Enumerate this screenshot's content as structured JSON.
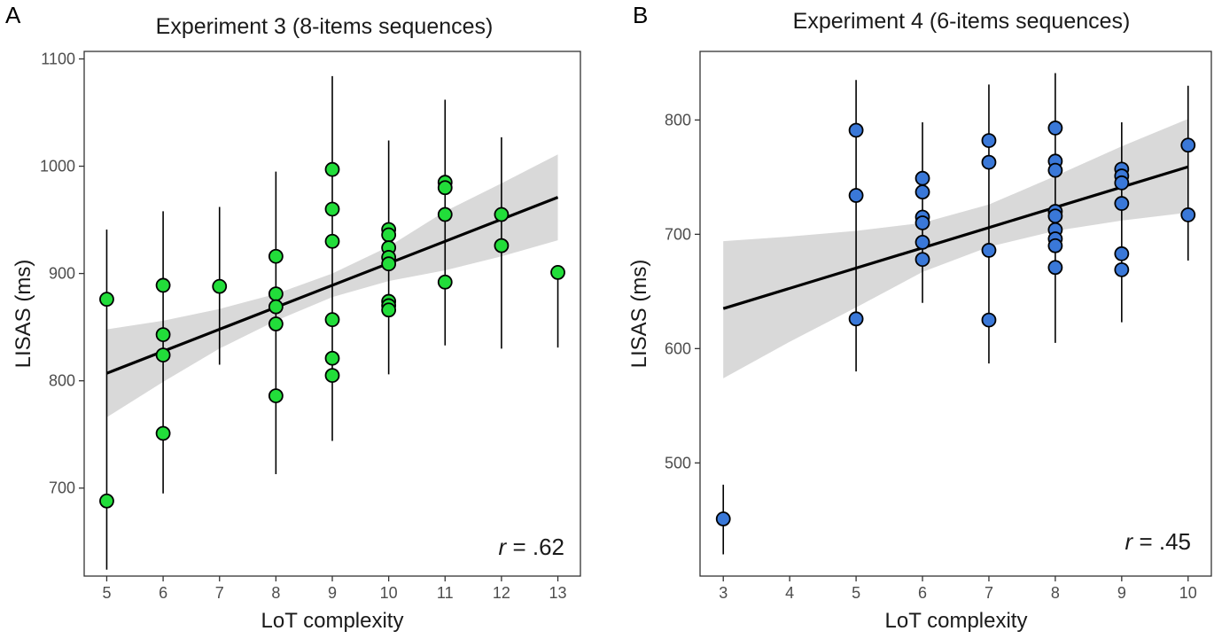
{
  "chart_data": [
    {
      "panel_letter": "A",
      "type": "scatter",
      "title": "Experiment 3 (8-items sequences)",
      "xlabel": "LoT complexity",
      "ylabel": "LISAS (ms)",
      "xlim": [
        4.6,
        13.4
      ],
      "ylim": [
        618,
        1107
      ],
      "xticks": [
        5,
        6,
        7,
        8,
        9,
        10,
        11,
        12,
        13
      ],
      "yticks": [
        700,
        800,
        900,
        1000,
        1100
      ],
      "grid": false,
      "point_color": "#22dd3a",
      "annotation": {
        "italic": "r",
        "rest": " = .62"
      },
      "regression": {
        "x0": 5,
        "y0": 807,
        "x1": 13,
        "y1": 971
      },
      "ci_band": [
        {
          "x": 5,
          "lo": 766,
          "hi": 848
        },
        {
          "x": 6,
          "lo": 799,
          "hi": 856
        },
        {
          "x": 7,
          "lo": 830,
          "hi": 867
        },
        {
          "x": 8,
          "lo": 856,
          "hi": 881
        },
        {
          "x": 9,
          "lo": 878,
          "hi": 900
        },
        {
          "x": 10,
          "lo": 893,
          "hi": 925
        },
        {
          "x": 11,
          "lo": 903,
          "hi": 958
        },
        {
          "x": 12,
          "lo": 916,
          "hi": 984
        },
        {
          "x": 13,
          "lo": 931,
          "hi": 1011
        }
      ],
      "error_bars": [
        {
          "x": 5,
          "lo": 624,
          "hi": 941
        },
        {
          "x": 6,
          "lo": 695,
          "hi": 958
        },
        {
          "x": 7,
          "lo": 815,
          "hi": 962
        },
        {
          "x": 8,
          "lo": 713,
          "hi": 995
        },
        {
          "x": 9,
          "lo": 744,
          "hi": 1084
        },
        {
          "x": 10,
          "lo": 806,
          "hi": 1024
        },
        {
          "x": 11,
          "lo": 833,
          "hi": 1062
        },
        {
          "x": 12,
          "lo": 830,
          "hi": 1027
        },
        {
          "x": 13,
          "lo": 831,
          "hi": 900
        }
      ],
      "points": [
        {
          "x": 5,
          "y": 876
        },
        {
          "x": 5,
          "y": 688
        },
        {
          "x": 6,
          "y": 889
        },
        {
          "x": 6,
          "y": 843
        },
        {
          "x": 6,
          "y": 824
        },
        {
          "x": 6,
          "y": 751
        },
        {
          "x": 7,
          "y": 888
        },
        {
          "x": 8,
          "y": 916
        },
        {
          "x": 8,
          "y": 881
        },
        {
          "x": 8,
          "y": 869
        },
        {
          "x": 8,
          "y": 853
        },
        {
          "x": 8,
          "y": 786
        },
        {
          "x": 9,
          "y": 997
        },
        {
          "x": 9,
          "y": 960
        },
        {
          "x": 9,
          "y": 930
        },
        {
          "x": 9,
          "y": 857
        },
        {
          "x": 9,
          "y": 821
        },
        {
          "x": 9,
          "y": 805
        },
        {
          "x": 10,
          "y": 941
        },
        {
          "x": 10,
          "y": 936
        },
        {
          "x": 10,
          "y": 924
        },
        {
          "x": 10,
          "y": 915
        },
        {
          "x": 10,
          "y": 909
        },
        {
          "x": 10,
          "y": 874
        },
        {
          "x": 10,
          "y": 870
        },
        {
          "x": 10,
          "y": 866
        },
        {
          "x": 11,
          "y": 985
        },
        {
          "x": 11,
          "y": 980
        },
        {
          "x": 11,
          "y": 955
        },
        {
          "x": 11,
          "y": 892
        },
        {
          "x": 12,
          "y": 955
        },
        {
          "x": 12,
          "y": 926
        },
        {
          "x": 13,
          "y": 901
        }
      ]
    },
    {
      "panel_letter": "B",
      "type": "scatter",
      "title": "Experiment 4 (6-items sequences)",
      "xlabel": "LoT complexity",
      "ylabel": "LISAS (ms)",
      "xlim": [
        2.65,
        10.35
      ],
      "ylim": [
        401,
        860
      ],
      "xticks": [
        3,
        4,
        5,
        6,
        7,
        8,
        9,
        10
      ],
      "yticks": [
        500,
        600,
        700,
        800
      ],
      "grid": false,
      "point_color": "#3a78d8",
      "annotation": {
        "italic": "r",
        "rest": " = .45"
      },
      "regression": {
        "x0": 3,
        "y0": 635,
        "x1": 10,
        "y1": 759
      },
      "ci_band": [
        {
          "x": 3,
          "lo": 574,
          "hi": 694
        },
        {
          "x": 4,
          "lo": 606,
          "hi": 698
        },
        {
          "x": 5,
          "lo": 636,
          "hi": 703
        },
        {
          "x": 6,
          "lo": 667,
          "hi": 710
        },
        {
          "x": 7,
          "lo": 689,
          "hi": 726
        },
        {
          "x": 8,
          "lo": 703,
          "hi": 751
        },
        {
          "x": 9,
          "lo": 712,
          "hi": 777
        },
        {
          "x": 10,
          "lo": 719,
          "hi": 801
        }
      ],
      "error_bars": [
        {
          "x": 3,
          "lo": 420,
          "hi": 481
        },
        {
          "x": 5,
          "lo": 580,
          "hi": 835
        },
        {
          "x": 6,
          "lo": 640,
          "hi": 798
        },
        {
          "x": 7,
          "lo": 587,
          "hi": 831
        },
        {
          "x": 8,
          "lo": 605,
          "hi": 841
        },
        {
          "x": 9,
          "lo": 623,
          "hi": 798
        },
        {
          "x": 10,
          "lo": 677,
          "hi": 830
        }
      ],
      "points": [
        {
          "x": 3,
          "y": 451
        },
        {
          "x": 5,
          "y": 791
        },
        {
          "x": 5,
          "y": 734
        },
        {
          "x": 5,
          "y": 626
        },
        {
          "x": 6,
          "y": 749
        },
        {
          "x": 6,
          "y": 737
        },
        {
          "x": 6,
          "y": 715
        },
        {
          "x": 6,
          "y": 710
        },
        {
          "x": 6,
          "y": 693
        },
        {
          "x": 6,
          "y": 678
        },
        {
          "x": 7,
          "y": 782
        },
        {
          "x": 7,
          "y": 763
        },
        {
          "x": 7,
          "y": 686
        },
        {
          "x": 7,
          "y": 625
        },
        {
          "x": 8,
          "y": 793
        },
        {
          "x": 8,
          "y": 764
        },
        {
          "x": 8,
          "y": 756
        },
        {
          "x": 8,
          "y": 720
        },
        {
          "x": 8,
          "y": 716
        },
        {
          "x": 8,
          "y": 704
        },
        {
          "x": 8,
          "y": 696
        },
        {
          "x": 8,
          "y": 690
        },
        {
          "x": 8,
          "y": 671
        },
        {
          "x": 9,
          "y": 757
        },
        {
          "x": 9,
          "y": 751
        },
        {
          "x": 9,
          "y": 745
        },
        {
          "x": 9,
          "y": 727
        },
        {
          "x": 9,
          "y": 683
        },
        {
          "x": 9,
          "y": 669
        },
        {
          "x": 10,
          "y": 778
        },
        {
          "x": 10,
          "y": 717
        }
      ]
    }
  ]
}
